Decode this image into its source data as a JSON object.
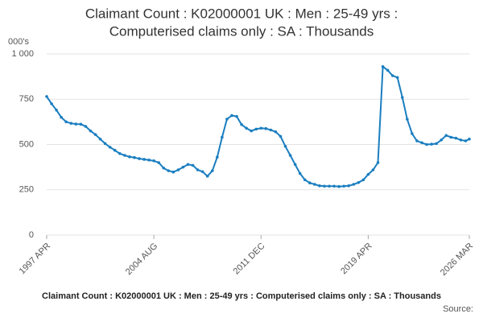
{
  "chart_data": {
    "type": "line",
    "title": [
      "Claimant Count : K02000001 UK : Men : 25-49 yrs :",
      "Computerised claims only : SA : Thousands"
    ],
    "y_unit": "000's",
    "footer": "Claimant Count : K02000001 UK : Men : 25-49 yrs : Computerised claims only : SA : Thousands",
    "source": "Source:",
    "color": "#1a7ec0",
    "grid": true,
    "ylim": [
      0,
      1000
    ],
    "yticks": [
      0,
      250,
      500,
      750,
      {
        "value": 1000,
        "label": "1 000"
      }
    ],
    "xticks": [
      "1997 APR",
      "2004 AUG",
      "2011 DEC",
      "2019 APR",
      "2026 MAR"
    ],
    "x": [
      "1997 APR",
      "1997 AUG",
      "1997 DEC",
      "1998 APR",
      "1998 AUG",
      "1998 DEC",
      "1999 APR",
      "1999 AUG",
      "1999 DEC",
      "2000 APR",
      "2000 AUG",
      "2000 DEC",
      "2001 APR",
      "2001 AUG",
      "2001 DEC",
      "2002 APR",
      "2002 AUG",
      "2002 DEC",
      "2003 APR",
      "2003 AUG",
      "2003 DEC",
      "2004 APR",
      "2004 AUG",
      "2004 DEC",
      "2005 APR",
      "2005 AUG",
      "2005 DEC",
      "2006 APR",
      "2006 AUG",
      "2006 DEC",
      "2007 APR",
      "2007 AUG",
      "2007 DEC",
      "2008 APR",
      "2008 AUG",
      "2008 DEC",
      "2009 APR",
      "2009 AUG",
      "2009 DEC",
      "2010 APR",
      "2010 AUG",
      "2010 DEC",
      "2011 APR",
      "2011 AUG",
      "2011 DEC",
      "2012 APR",
      "2012 AUG",
      "2012 DEC",
      "2013 APR",
      "2013 AUG",
      "2013 DEC",
      "2014 APR",
      "2014 AUG",
      "2014 DEC",
      "2015 APR",
      "2015 AUG",
      "2015 DEC",
      "2016 APR",
      "2016 AUG",
      "2016 DEC",
      "2017 APR",
      "2017 AUG",
      "2017 DEC",
      "2018 APR",
      "2018 AUG",
      "2018 DEC",
      "2019 APR",
      "2019 AUG",
      "2019 DEC",
      "2020 APR",
      "2020 AUG",
      "2020 DEC",
      "2021 APR",
      "2021 AUG",
      "2021 DEC",
      "2022 APR",
      "2022 AUG",
      "2022 DEC",
      "2023 APR",
      "2023 AUG",
      "2023 DEC",
      "2024 APR",
      "2024 AUG",
      "2024 DEC",
      "2025 APR",
      "2025 AUG",
      "2025 DEC",
      "2026 MAR"
    ],
    "values": [
      765,
      725,
      690,
      650,
      625,
      617,
      613,
      612,
      600,
      575,
      555,
      530,
      505,
      485,
      468,
      450,
      440,
      432,
      428,
      422,
      418,
      414,
      410,
      400,
      370,
      355,
      348,
      360,
      375,
      390,
      385,
      360,
      350,
      325,
      355,
      430,
      540,
      640,
      660,
      655,
      610,
      590,
      575,
      585,
      590,
      588,
      580,
      570,
      545,
      490,
      440,
      390,
      340,
      305,
      288,
      280,
      272,
      270,
      270,
      270,
      268,
      270,
      272,
      280,
      290,
      305,
      335,
      360,
      400,
      930,
      910,
      880,
      870,
      760,
      640,
      560,
      520,
      510,
      500,
      502,
      505,
      525,
      550,
      540,
      535,
      525,
      520,
      530
    ]
  }
}
